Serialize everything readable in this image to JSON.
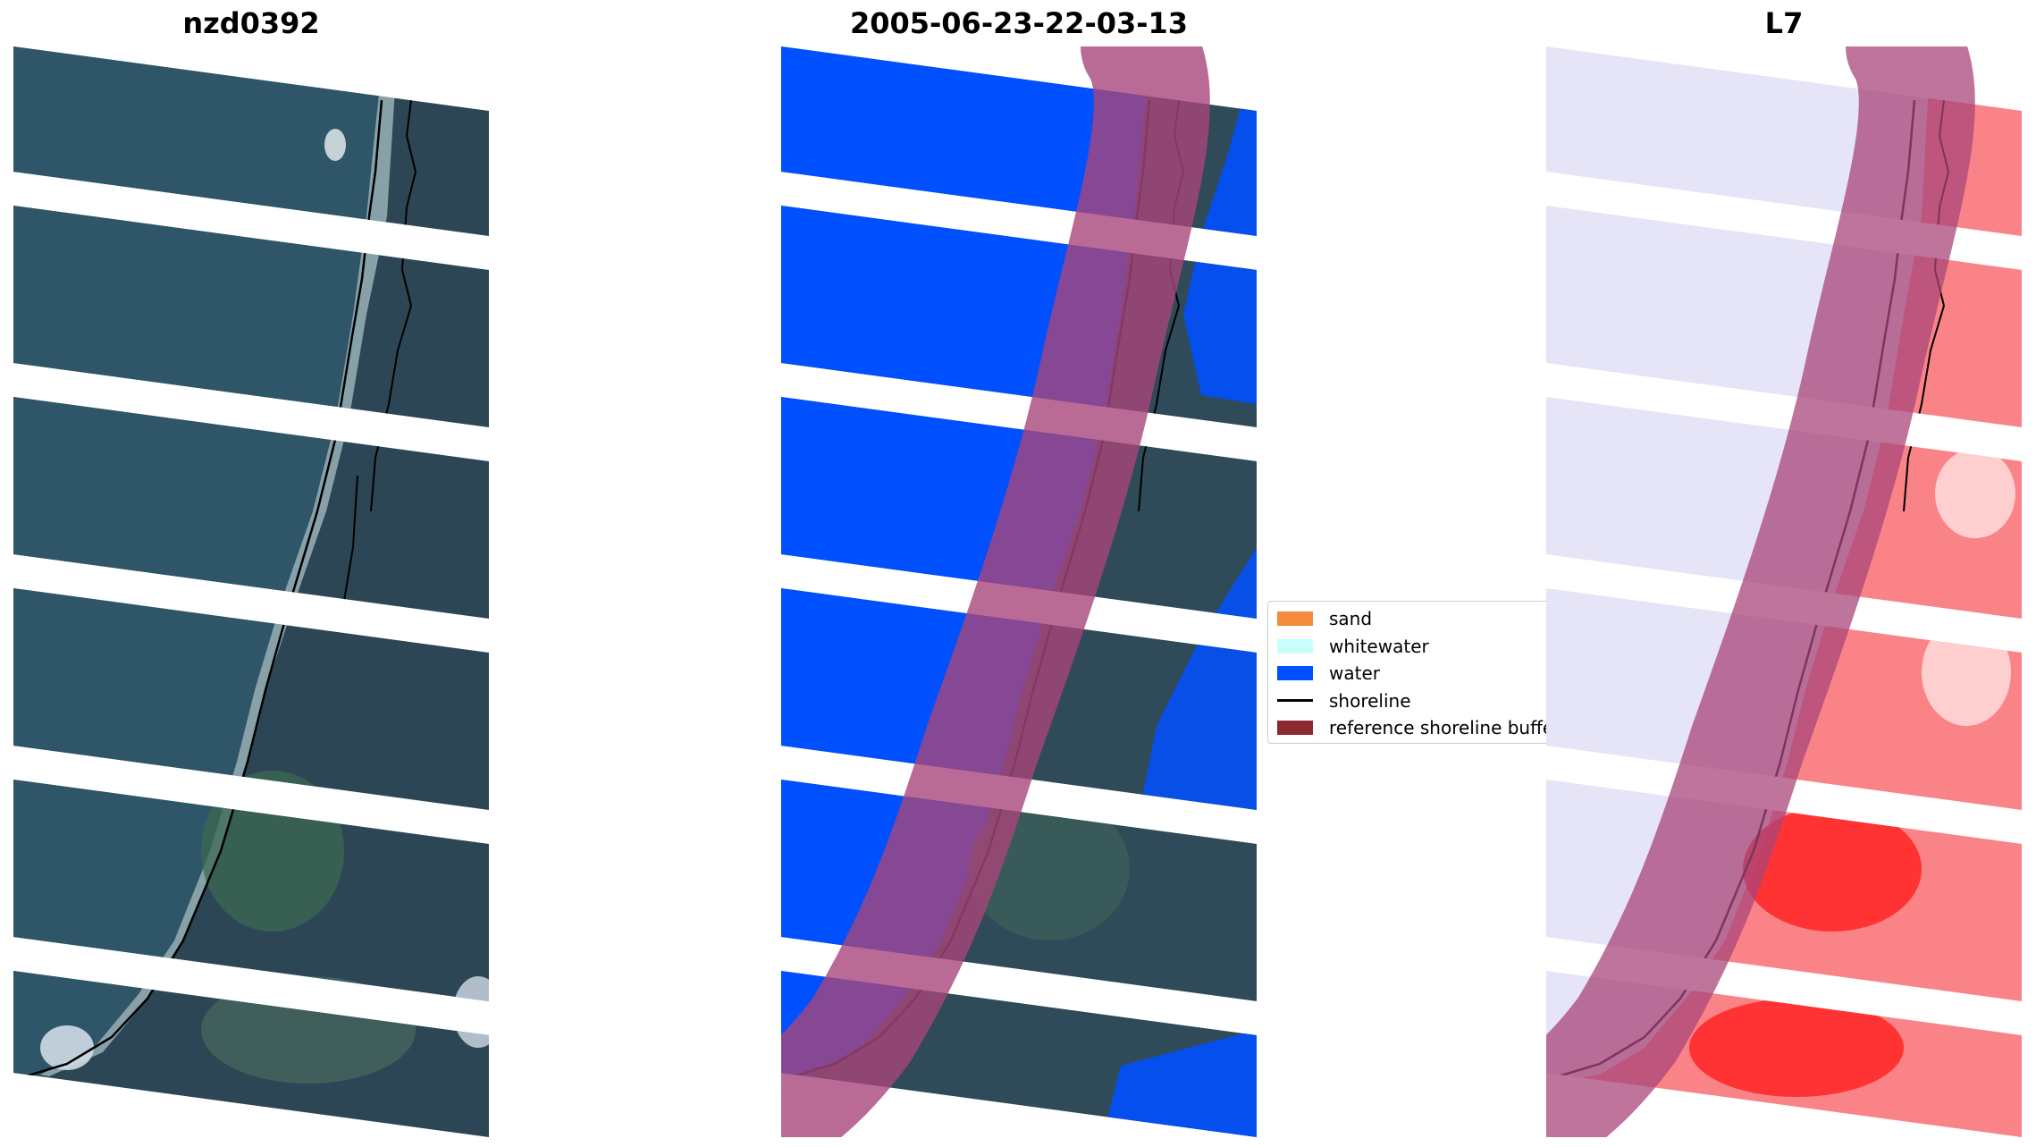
{
  "panels": {
    "rgb": {
      "title": "nzd0392"
    },
    "classified": {
      "title": "2005-06-23-22-03-13"
    },
    "index": {
      "title": "L7"
    }
  },
  "legend": {
    "items": [
      {
        "label": "sand",
        "kind": "patch",
        "color": "#f28c3c"
      },
      {
        "label": "whitewater",
        "kind": "patch",
        "color": "#c8fff8"
      },
      {
        "label": "water",
        "kind": "patch",
        "color": "#0050ff"
      },
      {
        "label": "shoreline",
        "kind": "line",
        "color": "#000000"
      },
      {
        "label": "reference shoreline buffer",
        "kind": "patch",
        "color": "#8b2a2e"
      }
    ]
  },
  "colors": {
    "ocean": "#2e5568",
    "land": "#2c4757",
    "water_class": "#0050ff",
    "buffer": "#a8457a",
    "index_low": "#dedcf6",
    "index_high": "#ff2a2a",
    "shoreline": "#000000"
  }
}
